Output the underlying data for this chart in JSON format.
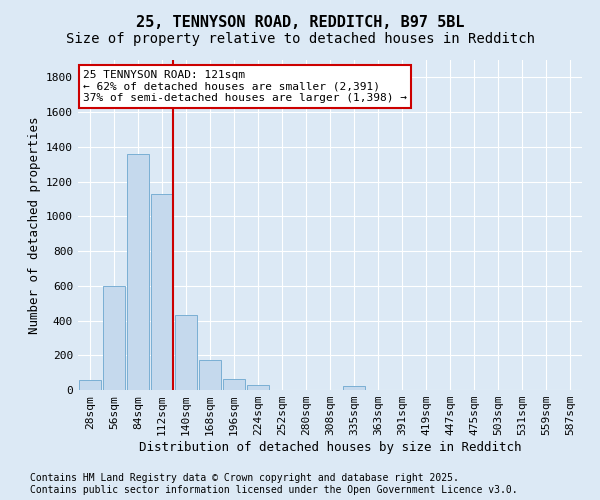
{
  "title1": "25, TENNYSON ROAD, REDDITCH, B97 5BL",
  "title2": "Size of property relative to detached houses in Redditch",
  "xlabel": "Distribution of detached houses by size in Redditch",
  "ylabel": "Number of detached properties",
  "categories": [
    "28sqm",
    "56sqm",
    "84sqm",
    "112sqm",
    "140sqm",
    "168sqm",
    "196sqm",
    "224sqm",
    "252sqm",
    "280sqm",
    "308sqm",
    "335sqm",
    "363sqm",
    "391sqm",
    "419sqm",
    "447sqm",
    "475sqm",
    "503sqm",
    "531sqm",
    "559sqm",
    "587sqm"
  ],
  "values": [
    55,
    600,
    1360,
    1130,
    430,
    170,
    65,
    30,
    0,
    0,
    0,
    25,
    0,
    0,
    0,
    0,
    0,
    0,
    0,
    0,
    0
  ],
  "bar_color": "#c5d9ed",
  "bar_edge_color": "#7aafd4",
  "vline_color": "#cc0000",
  "vline_x_index": 3.5,
  "annotation_text": "25 TENNYSON ROAD: 121sqm\n← 62% of detached houses are smaller (2,391)\n37% of semi-detached houses are larger (1,398) →",
  "annotation_box_facecolor": "#ffffff",
  "annotation_box_edgecolor": "#cc0000",
  "ylim": [
    0,
    1900
  ],
  "yticks": [
    0,
    200,
    400,
    600,
    800,
    1000,
    1200,
    1400,
    1600,
    1800
  ],
  "background_color": "#dce9f5",
  "grid_color": "#ffffff",
  "footer_text": "Contains HM Land Registry data © Crown copyright and database right 2025.\nContains public sector information licensed under the Open Government Licence v3.0.",
  "title1_fontsize": 11,
  "title2_fontsize": 10,
  "axis_label_fontsize": 9,
  "tick_fontsize": 8,
  "annotation_fontsize": 8,
  "footer_fontsize": 7
}
